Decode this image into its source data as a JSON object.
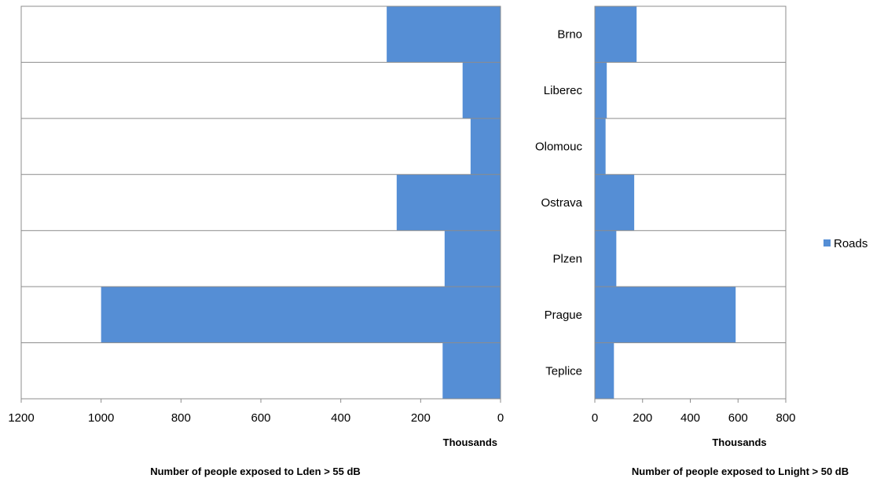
{
  "chart_data": [
    {
      "type": "bar",
      "orientation": "horizontal",
      "x_direction": "reversed",
      "categories": [
        "Brno",
        "Liberec",
        "Olomouc",
        "Ostrava",
        "Plzen",
        "Prague",
        "Teplice"
      ],
      "series": [
        {
          "name": "Roads",
          "values": [
            285,
            95,
            75,
            260,
            140,
            1000,
            145
          ]
        }
      ],
      "xlim": [
        0,
        1200
      ],
      "xticks": [
        1200,
        1000,
        800,
        600,
        400,
        200,
        0
      ],
      "xlabel": "Thousands",
      "title": "Number of people exposed to Lden > 55 dB",
      "grid": "horizontal",
      "color": "#558ed5"
    },
    {
      "type": "bar",
      "orientation": "horizontal",
      "categories": [
        "Brno",
        "Liberec",
        "Olomouc",
        "Ostrava",
        "Plzen",
        "Prague",
        "Teplice"
      ],
      "series": [
        {
          "name": "Roads",
          "values": [
            175,
            50,
            45,
            165,
            90,
            590,
            80
          ]
        }
      ],
      "xlim": [
        0,
        800
      ],
      "xticks": [
        0,
        200,
        400,
        600,
        800
      ],
      "xlabel": "Thousands",
      "title": "Number of people exposed to Lnight > 50 dB",
      "grid": "horizontal",
      "color": "#558ed5"
    }
  ],
  "legend": {
    "label": "Roads",
    "color": "#558ed5",
    "position": "right"
  }
}
